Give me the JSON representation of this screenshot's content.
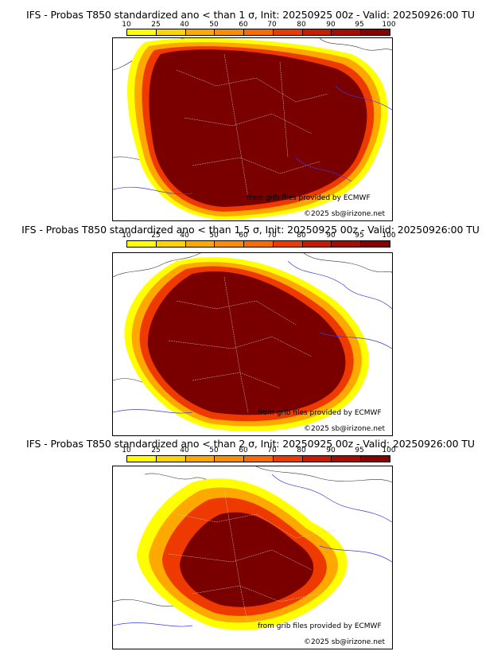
{
  "panels": [
    {
      "title": "IFS - Probas T850  standardized ano < than 1 σ, Init: 20250925 00z - Valid: 20250926:00 TU"
    },
    {
      "title": "IFS - Probas T850  standardized ano < than 1.5 σ, Init: 20250925 00z - Valid: 20250926:00 TU"
    },
    {
      "title": "IFS - Probas T850  standardized ano < than 2 σ, Init: 20250925 00z - Valid: 20250926:00 TU"
    }
  ],
  "colorbar": {
    "ticks": [
      "10",
      "25",
      "40",
      "50",
      "60",
      "70",
      "80",
      "90",
      "95",
      "100"
    ],
    "colors": [
      "#ffff00",
      "#ffd400",
      "#ffa800",
      "#ff8c00",
      "#ff6a00",
      "#ee3a00",
      "#cc1a00",
      "#aa0a00",
      "#8a0000",
      "#6a0000"
    ]
  },
  "credits": {
    "source": "from grib files provided by ECMWF",
    "copyright": "©2025 sb@irizone.net"
  }
}
